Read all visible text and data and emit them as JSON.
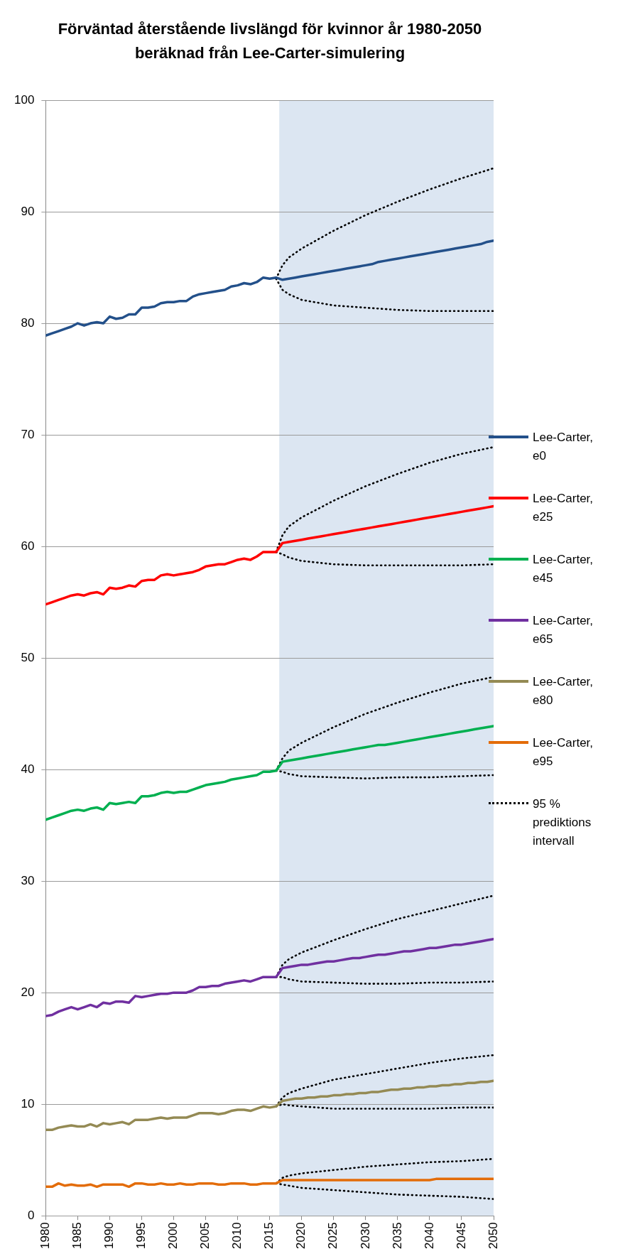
{
  "chart_data": {
    "type": "line",
    "title": "Förväntad återstående livslängd för kvinnor år 1980-2050 beräknad från Lee-Carter-simulering",
    "x": [
      1980,
      1981,
      1982,
      1983,
      1984,
      1985,
      1986,
      1987,
      1988,
      1989,
      1990,
      1991,
      1992,
      1993,
      1994,
      1995,
      1996,
      1997,
      1998,
      1999,
      2000,
      2001,
      2002,
      2003,
      2004,
      2005,
      2006,
      2007,
      2008,
      2009,
      2010,
      2011,
      2012,
      2013,
      2014,
      2015,
      2016,
      2017,
      2018,
      2019,
      2020,
      2021,
      2022,
      2023,
      2024,
      2025,
      2026,
      2027,
      2028,
      2029,
      2030,
      2031,
      2032,
      2033,
      2034,
      2035,
      2036,
      2037,
      2038,
      2039,
      2040,
      2041,
      2042,
      2043,
      2044,
      2045,
      2046,
      2047,
      2048,
      2049,
      2050
    ],
    "xlim": [
      1980,
      2050
    ],
    "xticks": [
      1980,
      1985,
      1990,
      1995,
      2000,
      2005,
      2010,
      2015,
      2020,
      2025,
      2030,
      2035,
      2040,
      2045,
      2050
    ],
    "ylim": [
      0,
      100
    ],
    "yticks": [
      0,
      10,
      20,
      30,
      40,
      50,
      60,
      70,
      80,
      90,
      100
    ],
    "grid": "y",
    "legend": "right",
    "marker": "none",
    "bands": [
      {
        "axis": "x",
        "from": 2016.5,
        "to": 2050,
        "color": "#dce6f2"
      }
    ],
    "series": [
      {
        "name": "Lee-Carter, e0",
        "color": "#23508a",
        "values": [
          78.9,
          79.1,
          79.3,
          79.5,
          79.7,
          80.0,
          79.8,
          80.0,
          80.1,
          80.0,
          80.6,
          80.4,
          80.5,
          80.8,
          80.8,
          81.4,
          81.4,
          81.5,
          81.8,
          81.9,
          81.9,
          82.0,
          82.0,
          82.4,
          82.6,
          82.7,
          82.8,
          82.9,
          83.0,
          83.3,
          83.4,
          83.6,
          83.5,
          83.7,
          84.1,
          84.0,
          84.1,
          83.9,
          84.0,
          84.1,
          84.2,
          84.3,
          84.4,
          84.5,
          84.6,
          84.7,
          84.8,
          84.9,
          85.0,
          85.1,
          85.2,
          85.3,
          85.5,
          85.6,
          85.7,
          85.8,
          85.9,
          86.0,
          86.1,
          86.2,
          86.3,
          86.4,
          86.5,
          86.6,
          86.7,
          86.8,
          86.9,
          87.0,
          87.1,
          87.3,
          87.4
        ]
      },
      {
        "name": "Lee-Carter, e25",
        "color": "#ff0000",
        "values": [
          54.8,
          55.0,
          55.2,
          55.4,
          55.6,
          55.7,
          55.6,
          55.8,
          55.9,
          55.7,
          56.3,
          56.2,
          56.3,
          56.5,
          56.4,
          56.9,
          57.0,
          57.0,
          57.4,
          57.5,
          57.4,
          57.5,
          57.6,
          57.7,
          57.9,
          58.2,
          58.3,
          58.4,
          58.4,
          58.6,
          58.8,
          58.9,
          58.8,
          59.1,
          59.5,
          59.5,
          59.5,
          60.3,
          60.4,
          60.5,
          60.6,
          60.7,
          60.8,
          60.9,
          61.0,
          61.1,
          61.2,
          61.3,
          61.4,
          61.5,
          61.6,
          61.7,
          61.8,
          61.9,
          62.0,
          62.1,
          62.2,
          62.3,
          62.4,
          62.5,
          62.6,
          62.7,
          62.8,
          62.9,
          63.0,
          63.1,
          63.2,
          63.3,
          63.4,
          63.5,
          63.6
        ]
      },
      {
        "name": "Lee-Carter, e45",
        "color": "#00b050",
        "values": [
          35.5,
          35.7,
          35.9,
          36.1,
          36.3,
          36.4,
          36.3,
          36.5,
          36.6,
          36.4,
          37.0,
          36.9,
          37.0,
          37.1,
          37.0,
          37.6,
          37.6,
          37.7,
          37.9,
          38.0,
          37.9,
          38.0,
          38.0,
          38.2,
          38.4,
          38.6,
          38.7,
          38.8,
          38.9,
          39.1,
          39.2,
          39.3,
          39.4,
          39.5,
          39.8,
          39.8,
          39.9,
          40.7,
          40.8,
          40.9,
          41.0,
          41.1,
          41.2,
          41.3,
          41.4,
          41.5,
          41.6,
          41.7,
          41.8,
          41.9,
          42.0,
          42.1,
          42.2,
          42.2,
          42.3,
          42.4,
          42.5,
          42.6,
          42.7,
          42.8,
          42.9,
          43.0,
          43.1,
          43.2,
          43.3,
          43.4,
          43.5,
          43.6,
          43.7,
          43.8,
          43.9
        ]
      },
      {
        "name": "Lee-Carter, e65",
        "color": "#7030a0",
        "values": [
          17.9,
          18.0,
          18.3,
          18.5,
          18.7,
          18.5,
          18.7,
          18.9,
          18.7,
          19.1,
          19.0,
          19.2,
          19.2,
          19.1,
          19.7,
          19.6,
          19.7,
          19.8,
          19.9,
          19.9,
          20.0,
          20.0,
          20.0,
          20.2,
          20.5,
          20.5,
          20.6,
          20.6,
          20.8,
          20.9,
          21.0,
          21.1,
          21.0,
          21.2,
          21.4,
          21.4,
          21.4,
          22.2,
          22.3,
          22.4,
          22.5,
          22.5,
          22.6,
          22.7,
          22.8,
          22.8,
          22.9,
          23.0,
          23.1,
          23.1,
          23.2,
          23.3,
          23.4,
          23.4,
          23.5,
          23.6,
          23.7,
          23.7,
          23.8,
          23.9,
          24.0,
          24.0,
          24.1,
          24.2,
          24.3,
          24.3,
          24.4,
          24.5,
          24.6,
          24.7,
          24.8
        ]
      },
      {
        "name": "Lee-Carter, e80",
        "color": "#948a54",
        "values": [
          7.7,
          7.7,
          7.9,
          8.0,
          8.1,
          8.0,
          8.0,
          8.2,
          8.0,
          8.3,
          8.2,
          8.3,
          8.4,
          8.2,
          8.6,
          8.6,
          8.6,
          8.7,
          8.8,
          8.7,
          8.8,
          8.8,
          8.8,
          9.0,
          9.2,
          9.2,
          9.2,
          9.1,
          9.2,
          9.4,
          9.5,
          9.5,
          9.4,
          9.6,
          9.8,
          9.7,
          9.8,
          10.3,
          10.4,
          10.5,
          10.5,
          10.6,
          10.6,
          10.7,
          10.7,
          10.8,
          10.8,
          10.9,
          10.9,
          11.0,
          11.0,
          11.1,
          11.1,
          11.2,
          11.3,
          11.3,
          11.4,
          11.4,
          11.5,
          11.5,
          11.6,
          11.6,
          11.7,
          11.7,
          11.8,
          11.8,
          11.9,
          11.9,
          12.0,
          12.0,
          12.1
        ]
      },
      {
        "name": "Lee-Carter, e95",
        "color": "#e36c09",
        "values": [
          2.6,
          2.6,
          2.9,
          2.7,
          2.8,
          2.7,
          2.7,
          2.8,
          2.6,
          2.8,
          2.8,
          2.8,
          2.8,
          2.6,
          2.9,
          2.9,
          2.8,
          2.8,
          2.9,
          2.8,
          2.8,
          2.9,
          2.8,
          2.8,
          2.9,
          2.9,
          2.9,
          2.8,
          2.8,
          2.9,
          2.9,
          2.9,
          2.8,
          2.8,
          2.9,
          2.9,
          2.9,
          3.2,
          3.2,
          3.2,
          3.2,
          3.2,
          3.2,
          3.2,
          3.2,
          3.2,
          3.2,
          3.2,
          3.2,
          3.2,
          3.2,
          3.2,
          3.2,
          3.2,
          3.2,
          3.2,
          3.2,
          3.2,
          3.2,
          3.2,
          3.2,
          3.3,
          3.3,
          3.3,
          3.3,
          3.3,
          3.3,
          3.3,
          3.3,
          3.3,
          3.3
        ]
      },
      {
        "name": "95 % prediktions intervall",
        "color": "#000000",
        "line_style": "dotted",
        "x": [
          2016,
          2017,
          2018,
          2020,
          2025,
          2030,
          2035,
          2040,
          2045,
          2050
        ],
        "values": [
          84.0,
          85.2,
          85.9,
          86.7,
          88.3,
          89.7,
          90.9,
          92.0,
          93.0,
          93.9
        ]
      },
      {
        "color": "#000000",
        "line_style": "dotted",
        "x": [
          2016,
          2017,
          2018,
          2020,
          2025,
          2030,
          2035,
          2040,
          2045,
          2050
        ],
        "values": [
          84.0,
          83.0,
          82.6,
          82.1,
          81.6,
          81.4,
          81.2,
          81.1,
          81.1,
          81.1
        ]
      },
      {
        "color": "#000000",
        "line_style": "dotted",
        "x": [
          2016,
          2017,
          2018,
          2020,
          2025,
          2030,
          2035,
          2040,
          2045,
          2050
        ],
        "values": [
          59.5,
          61.0,
          61.8,
          62.6,
          64.1,
          65.4,
          66.5,
          67.5,
          68.3,
          68.9
        ]
      },
      {
        "color": "#000000",
        "line_style": "dotted",
        "x": [
          2016,
          2017,
          2018,
          2020,
          2025,
          2030,
          2035,
          2040,
          2045,
          2050
        ],
        "values": [
          59.5,
          59.3,
          59.0,
          58.7,
          58.4,
          58.3,
          58.3,
          58.3,
          58.3,
          58.4
        ]
      },
      {
        "color": "#000000",
        "line_style": "dotted",
        "x": [
          2016,
          2017,
          2018,
          2020,
          2025,
          2030,
          2035,
          2040,
          2045,
          2050
        ],
        "values": [
          39.9,
          41.0,
          41.7,
          42.4,
          43.8,
          45.0,
          46.0,
          46.9,
          47.7,
          48.3
        ]
      },
      {
        "color": "#000000",
        "line_style": "dotted",
        "x": [
          2016,
          2017,
          2018,
          2020,
          2025,
          2030,
          2035,
          2040,
          2045,
          2050
        ],
        "values": [
          39.9,
          39.8,
          39.6,
          39.4,
          39.3,
          39.2,
          39.3,
          39.3,
          39.4,
          39.5
        ]
      },
      {
        "color": "#000000",
        "line_style": "dotted",
        "x": [
          2016,
          2017,
          2018,
          2020,
          2025,
          2030,
          2035,
          2040,
          2045,
          2050
        ],
        "values": [
          21.4,
          22.5,
          23.0,
          23.6,
          24.7,
          25.7,
          26.6,
          27.3,
          28.0,
          28.7
        ]
      },
      {
        "color": "#000000",
        "line_style": "dotted",
        "x": [
          2016,
          2017,
          2018,
          2020,
          2025,
          2030,
          2035,
          2040,
          2045,
          2050
        ],
        "values": [
          21.4,
          21.4,
          21.2,
          21.0,
          20.9,
          20.8,
          20.8,
          20.9,
          20.9,
          21.0
        ]
      },
      {
        "color": "#000000",
        "line_style": "dotted",
        "x": [
          2016,
          2017,
          2018,
          2020,
          2025,
          2030,
          2035,
          2040,
          2045,
          2050
        ],
        "values": [
          9.8,
          10.6,
          11.0,
          11.4,
          12.2,
          12.7,
          13.2,
          13.7,
          14.1,
          14.4
        ]
      },
      {
        "color": "#000000",
        "line_style": "dotted",
        "x": [
          2016,
          2017,
          2018,
          2020,
          2025,
          2030,
          2035,
          2040,
          2045,
          2050
        ],
        "values": [
          9.8,
          10.0,
          9.9,
          9.8,
          9.6,
          9.6,
          9.6,
          9.6,
          9.7,
          9.7
        ]
      },
      {
        "color": "#000000",
        "line_style": "dotted",
        "x": [
          2016,
          2017,
          2018,
          2020,
          2025,
          2030,
          2035,
          2040,
          2045,
          2050
        ],
        "values": [
          2.9,
          3.4,
          3.6,
          3.8,
          4.1,
          4.4,
          4.6,
          4.8,
          4.9,
          5.1
        ]
      },
      {
        "color": "#000000",
        "line_style": "dotted",
        "x": [
          2016,
          2017,
          2018,
          2020,
          2025,
          2030,
          2035,
          2040,
          2045,
          2050
        ],
        "values": [
          2.9,
          2.8,
          2.7,
          2.5,
          2.3,
          2.1,
          1.9,
          1.8,
          1.7,
          1.5
        ]
      }
    ]
  }
}
